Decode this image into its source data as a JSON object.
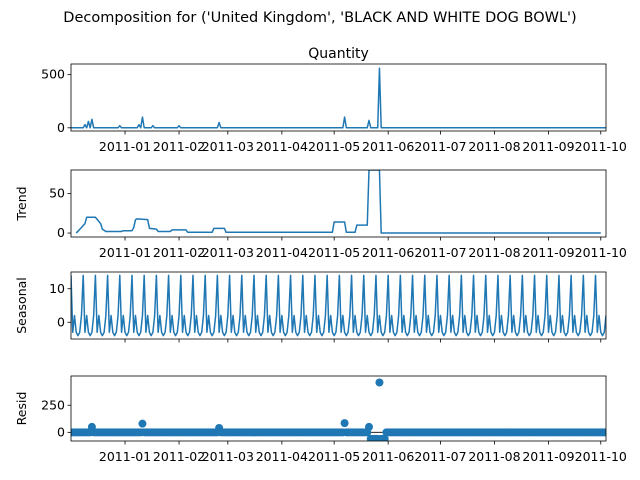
{
  "figure_title": "Decomposition for ('United Kingdom', 'BLACK AND WHITE DOG BOWL')",
  "colors": {
    "line": "#1f77b4",
    "marker": "#1f77b4",
    "axes": "#000000",
    "background": "#ffffff"
  },
  "x_axis": {
    "type": "date",
    "range": [
      "2010-12-01",
      "2011-10-04"
    ],
    "ticks": [
      "2011-01",
      "2011-02",
      "2011-03",
      "2011-04",
      "2011-05",
      "2011-06",
      "2011-07",
      "2011-08",
      "2011-09",
      "2011-10"
    ],
    "tick_dates": [
      "2011-01-01",
      "2011-02-01",
      "2011-03-01",
      "2011-04-01",
      "2011-05-01",
      "2011-06-01",
      "2011-07-01",
      "2011-08-01",
      "2011-09-01",
      "2011-10-01"
    ]
  },
  "chart_data": [
    {
      "type": "line",
      "panel": "observed",
      "title": "Quantity",
      "ylabel": "",
      "ylim": [
        -30,
        600
      ],
      "yticks": [
        0,
        500
      ],
      "points": [
        [
          "2010-12-01",
          0
        ],
        [
          "2010-12-08",
          0
        ],
        [
          "2010-12-09",
          30
        ],
        [
          "2010-12-10",
          0
        ],
        [
          "2010-12-11",
          60
        ],
        [
          "2010-12-12",
          0
        ],
        [
          "2010-12-13",
          80
        ],
        [
          "2010-12-14",
          0
        ],
        [
          "2010-12-28",
          0
        ],
        [
          "2010-12-29",
          20
        ],
        [
          "2010-12-30",
          0
        ],
        [
          "2011-01-08",
          0
        ],
        [
          "2011-01-09",
          30
        ],
        [
          "2011-01-10",
          0
        ],
        [
          "2011-01-11",
          100
        ],
        [
          "2011-01-12",
          0
        ],
        [
          "2011-01-16",
          0
        ],
        [
          "2011-01-17",
          20
        ],
        [
          "2011-01-18",
          0
        ],
        [
          "2011-01-31",
          0
        ],
        [
          "2011-02-01",
          20
        ],
        [
          "2011-02-02",
          0
        ],
        [
          "2011-02-23",
          0
        ],
        [
          "2011-02-24",
          50
        ],
        [
          "2011-02-25",
          0
        ],
        [
          "2011-05-06",
          0
        ],
        [
          "2011-05-07",
          100
        ],
        [
          "2011-05-08",
          0
        ],
        [
          "2011-05-20",
          0
        ],
        [
          "2011-05-21",
          70
        ],
        [
          "2011-05-22",
          0
        ],
        [
          "2011-05-26",
          0
        ],
        [
          "2011-05-27",
          560
        ],
        [
          "2011-05-28",
          0
        ],
        [
          "2011-10-04",
          0
        ]
      ]
    },
    {
      "type": "line",
      "panel": "trend",
      "title": "",
      "ylabel": "Trend",
      "ylim": [
        -5,
        80
      ],
      "yticks": [
        0,
        50
      ],
      "points": [
        [
          "2010-12-04",
          0
        ],
        [
          "2010-12-07",
          7
        ],
        [
          "2010-12-09",
          12
        ],
        [
          "2010-12-10",
          20
        ],
        [
          "2010-12-15",
          20
        ],
        [
          "2010-12-18",
          12
        ],
        [
          "2010-12-19",
          5
        ],
        [
          "2010-12-21",
          2
        ],
        [
          "2010-12-30",
          2
        ],
        [
          "2010-12-31",
          3
        ],
        [
          "2011-01-05",
          3
        ],
        [
          "2011-01-06",
          7
        ],
        [
          "2011-01-07",
          17
        ],
        [
          "2011-01-08",
          18
        ],
        [
          "2011-01-14",
          17
        ],
        [
          "2011-01-15",
          6
        ],
        [
          "2011-01-19",
          5
        ],
        [
          "2011-01-20",
          2
        ],
        [
          "2011-01-27",
          2
        ],
        [
          "2011-01-28",
          4
        ],
        [
          "2011-02-05",
          4
        ],
        [
          "2011-02-06",
          1
        ],
        [
          "2011-02-20",
          1
        ],
        [
          "2011-02-21",
          6
        ],
        [
          "2011-02-27",
          6
        ],
        [
          "2011-02-28",
          1
        ],
        [
          "2011-04-30",
          1
        ],
        [
          "2011-05-01",
          14
        ],
        [
          "2011-05-07",
          14
        ],
        [
          "2011-05-08",
          1
        ],
        [
          "2011-05-13",
          1
        ],
        [
          "2011-05-14",
          10
        ],
        [
          "2011-05-20",
          10
        ],
        [
          "2011-05-21",
          80
        ],
        [
          "2011-05-27",
          80
        ],
        [
          "2011-05-28",
          0
        ],
        [
          "2011-06-10",
          0
        ],
        [
          "2011-10-01",
          0
        ]
      ]
    },
    {
      "type": "line",
      "panel": "seasonal",
      "title": "",
      "ylabel": "Seasonal",
      "ylim": [
        -5,
        15
      ],
      "yticks": [
        0,
        10
      ],
      "period_days": 7,
      "cycle_start": "2010-12-01",
      "weekly_pattern": [
        14,
        -3,
        2,
        -3,
        -4,
        -3,
        2
      ]
    },
    {
      "type": "scatter",
      "panel": "resid",
      "title": "",
      "ylabel": "Resid",
      "ylim": [
        -80,
        520
      ],
      "yticks": [
        0,
        250
      ],
      "baseline": 0,
      "outliers": [
        [
          "2010-12-13",
          50
        ],
        [
          "2011-01-11",
          80
        ],
        [
          "2011-02-24",
          40
        ],
        [
          "2011-05-07",
          85
        ],
        [
          "2011-05-21",
          50
        ],
        [
          "2011-05-27",
          460
        ],
        [
          "2011-05-22",
          -60
        ],
        [
          "2011-05-23",
          -60
        ],
        [
          "2011-05-24",
          -60
        ],
        [
          "2011-05-25",
          -60
        ],
        [
          "2011-05-26",
          -60
        ],
        [
          "2011-05-28",
          -60
        ],
        [
          "2011-05-29",
          -60
        ],
        [
          "2011-05-30",
          -60
        ]
      ]
    }
  ]
}
